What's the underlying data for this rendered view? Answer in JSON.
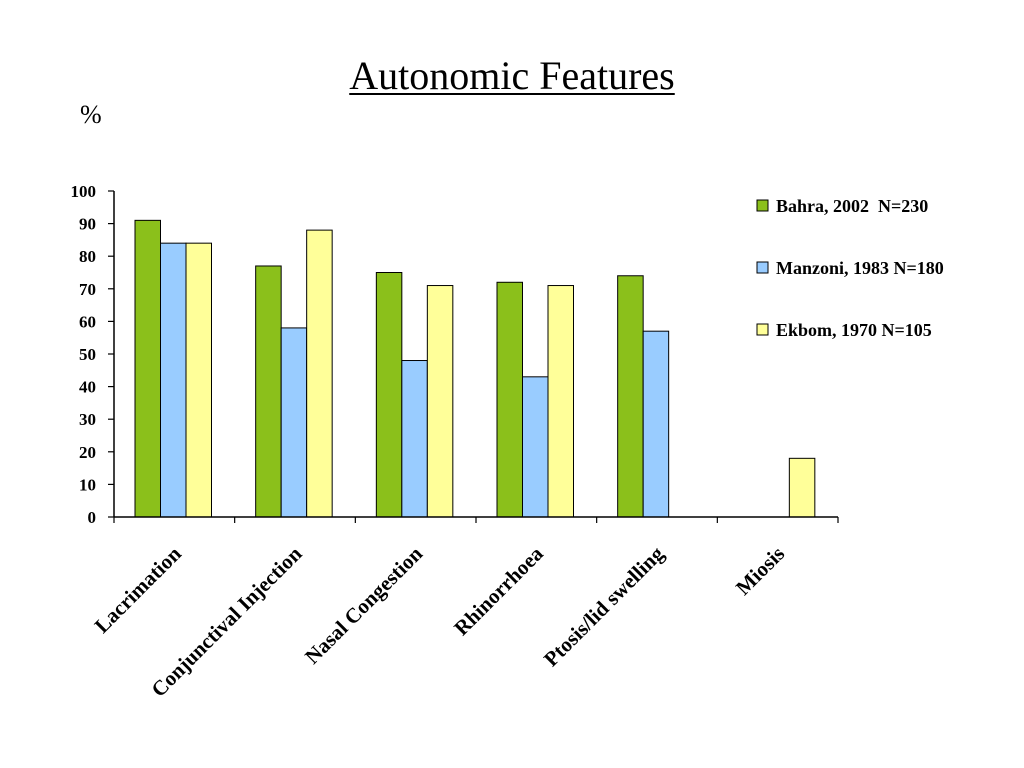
{
  "page": {
    "title": "Autonomic Features",
    "unit": "%"
  },
  "colors": {
    "bahra": "#8bc01b",
    "manzoni": "#99ccff",
    "ekbom": "#ffff99",
    "axis": "#000000"
  },
  "chart_data": {
    "type": "bar",
    "title": "Autonomic Features",
    "ylabel": "%",
    "xlabel": "",
    "ylim": [
      0,
      100
    ],
    "yticks": [
      0,
      10,
      20,
      30,
      40,
      50,
      60,
      70,
      80,
      90,
      100
    ],
    "grid": false,
    "legend_position": "right",
    "categories": [
      "Lacrimation",
      "Conjunctival Injection",
      "Nasal Congestion",
      "Rhinorrhoea",
      "Ptosis/lid swelling",
      "Miosis"
    ],
    "series": [
      {
        "name": "Bahra, 2002  N=230",
        "color": "#8bc01b",
        "values": [
          91,
          77,
          75,
          72,
          74,
          null
        ]
      },
      {
        "name": "Manzoni, 1983 N=180",
        "color": "#99ccff",
        "values": [
          84,
          58,
          48,
          43,
          57,
          null
        ]
      },
      {
        "name": "Ekbom, 1970 N=105",
        "color": "#ffff99",
        "values": [
          84,
          88,
          71,
          71,
          null,
          18
        ]
      }
    ]
  }
}
